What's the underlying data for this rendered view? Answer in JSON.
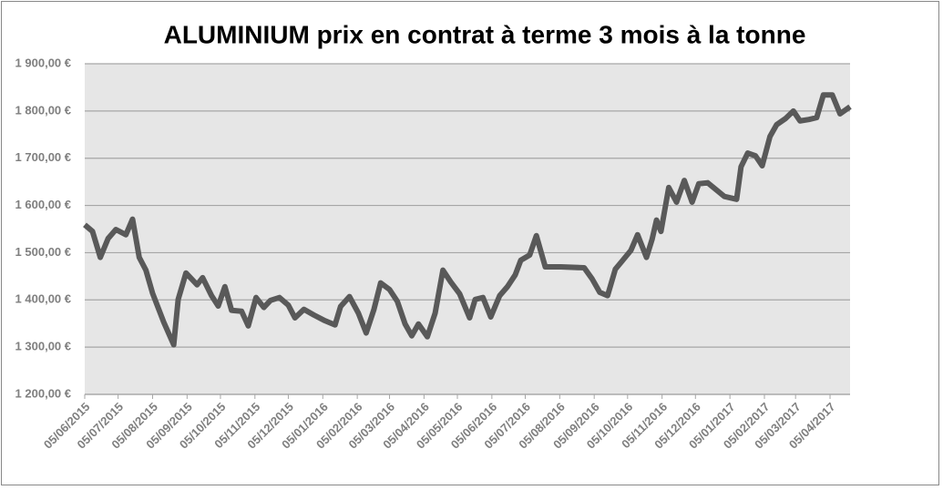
{
  "chart_data": {
    "type": "line",
    "title": "ALUMINIUM prix en contrat à terme 3 mois à la tonne",
    "x": [
      "2015-06-05",
      "2015-06-12",
      "2015-06-19",
      "2015-06-26",
      "2015-07-03",
      "2015-07-12",
      "2015-07-18",
      "2015-07-24",
      "2015-07-30",
      "2015-08-05",
      "2015-08-15",
      "2015-08-24",
      "2015-08-28",
      "2015-09-04",
      "2015-09-14",
      "2015-09-19",
      "2015-09-27",
      "2015-10-03",
      "2015-10-09",
      "2015-10-15",
      "2015-10-24",
      "2015-10-30",
      "2015-11-06",
      "2015-11-13",
      "2015-11-19",
      "2015-11-27",
      "2015-12-05",
      "2015-12-11",
      "2015-12-19",
      "2015-12-28",
      "2016-01-06",
      "2016-01-16",
      "2016-01-21",
      "2016-01-29",
      "2016-02-06",
      "2016-02-13",
      "2016-02-20",
      "2016-02-26",
      "2016-03-05",
      "2016-03-12",
      "2016-03-19",
      "2016-03-25",
      "2016-03-31",
      "2016-04-08",
      "2016-04-15",
      "2016-04-22",
      "2016-04-29",
      "2016-05-07",
      "2016-05-16",
      "2016-05-21",
      "2016-05-28",
      "2016-06-04",
      "2016-06-12",
      "2016-06-19",
      "2016-06-26",
      "2016-07-01",
      "2016-07-09",
      "2016-07-15",
      "2016-07-23",
      "2016-08-06",
      "2016-08-27",
      "2016-09-03",
      "2016-09-10",
      "2016-09-17",
      "2016-09-24",
      "2016-09-30",
      "2016-10-08",
      "2016-10-14",
      "2016-10-22",
      "2016-10-27",
      "2016-10-31",
      "2016-11-04",
      "2016-11-11",
      "2016-11-18",
      "2016-11-25",
      "2016-12-02",
      "2016-12-08",
      "2016-12-16",
      "2016-12-31",
      "2017-01-11",
      "2017-01-15",
      "2017-01-21",
      "2017-01-28",
      "2017-02-03",
      "2017-02-10",
      "2017-02-16",
      "2017-02-24",
      "2017-03-03",
      "2017-03-09",
      "2017-03-17",
      "2017-03-24",
      "2017-03-30",
      "2017-04-07",
      "2017-04-14",
      "2017-04-23"
    ],
    "series": [
      {
        "name": "ALUMINIUM",
        "color": "#595959",
        "values": [
          1559,
          1545,
          1490,
          1530,
          1549,
          1538,
          1571,
          1490,
          1463,
          1414,
          1353,
          1305,
          1401,
          1457,
          1432,
          1447,
          1409,
          1387,
          1428,
          1378,
          1376,
          1345,
          1405,
          1384,
          1399,
          1405,
          1389,
          1362,
          1380,
          1368,
          1357,
          1347,
          1386,
          1407,
          1372,
          1330,
          1380,
          1436,
          1422,
          1397,
          1349,
          1324,
          1349,
          1322,
          1372,
          1463,
          1438,
          1413,
          1362,
          1401,
          1405,
          1364,
          1409,
          1428,
          1453,
          1484,
          1495,
          1536,
          1470,
          1470,
          1468,
          1445,
          1416,
          1409,
          1465,
          1482,
          1505,
          1538,
          1490,
          1528,
          1569,
          1545,
          1638,
          1607,
          1653,
          1607,
          1646,
          1648,
          1619,
          1613,
          1682,
          1711,
          1705,
          1684,
          1746,
          1771,
          1784,
          1800,
          1779,
          1782,
          1786,
          1834,
          1834,
          1794,
          1809
        ]
      }
    ],
    "xlim": [
      "2015-06-05",
      "2017-04-23"
    ],
    "xticks": [
      {
        "value": "2015-06-05",
        "label": "05/06/2015"
      },
      {
        "value": "2015-07-05",
        "label": "05/07/2015"
      },
      {
        "value": "2015-08-05",
        "label": "05/08/2015"
      },
      {
        "value": "2015-09-05",
        "label": "05/09/2015"
      },
      {
        "value": "2015-10-05",
        "label": "05/10/2015"
      },
      {
        "value": "2015-11-05",
        "label": "05/11/2015"
      },
      {
        "value": "2015-12-05",
        "label": "05/12/2015"
      },
      {
        "value": "2016-01-05",
        "label": "05/01/2016"
      },
      {
        "value": "2016-02-05",
        "label": "05/02/2016"
      },
      {
        "value": "2016-03-05",
        "label": "05/03/2016"
      },
      {
        "value": "2016-04-05",
        "label": "05/04/2016"
      },
      {
        "value": "2016-05-05",
        "label": "05/05/2016"
      },
      {
        "value": "2016-06-05",
        "label": "05/06/2016"
      },
      {
        "value": "2016-07-05",
        "label": "05/07/2016"
      },
      {
        "value": "2016-08-05",
        "label": "05/08/2016"
      },
      {
        "value": "2016-09-05",
        "label": "05/09/2016"
      },
      {
        "value": "2016-10-05",
        "label": "05/10/2016"
      },
      {
        "value": "2016-11-05",
        "label": "05/11/2016"
      },
      {
        "value": "2016-12-05",
        "label": "05/12/2016"
      },
      {
        "value": "2017-01-05",
        "label": "05/01/2017"
      },
      {
        "value": "2017-02-05",
        "label": "05/02/2017"
      },
      {
        "value": "2017-03-05",
        "label": "05/03/2017"
      },
      {
        "value": "2017-04-05",
        "label": "05/04/2017"
      }
    ],
    "ylim": [
      1200,
      1900
    ],
    "yticks": [
      {
        "value": 1200,
        "label": "1 200,00 €"
      },
      {
        "value": 1300,
        "label": "1 300,00 €"
      },
      {
        "value": 1400,
        "label": "1 400,00 €"
      },
      {
        "value": 1500,
        "label": "1 500,00 €"
      },
      {
        "value": 1600,
        "label": "1 600,00 €"
      },
      {
        "value": 1700,
        "label": "1 700,00 €"
      },
      {
        "value": 1800,
        "label": "1 800,00 €"
      },
      {
        "value": 1900,
        "label": "1 900,00 €"
      }
    ],
    "grid": true
  }
}
